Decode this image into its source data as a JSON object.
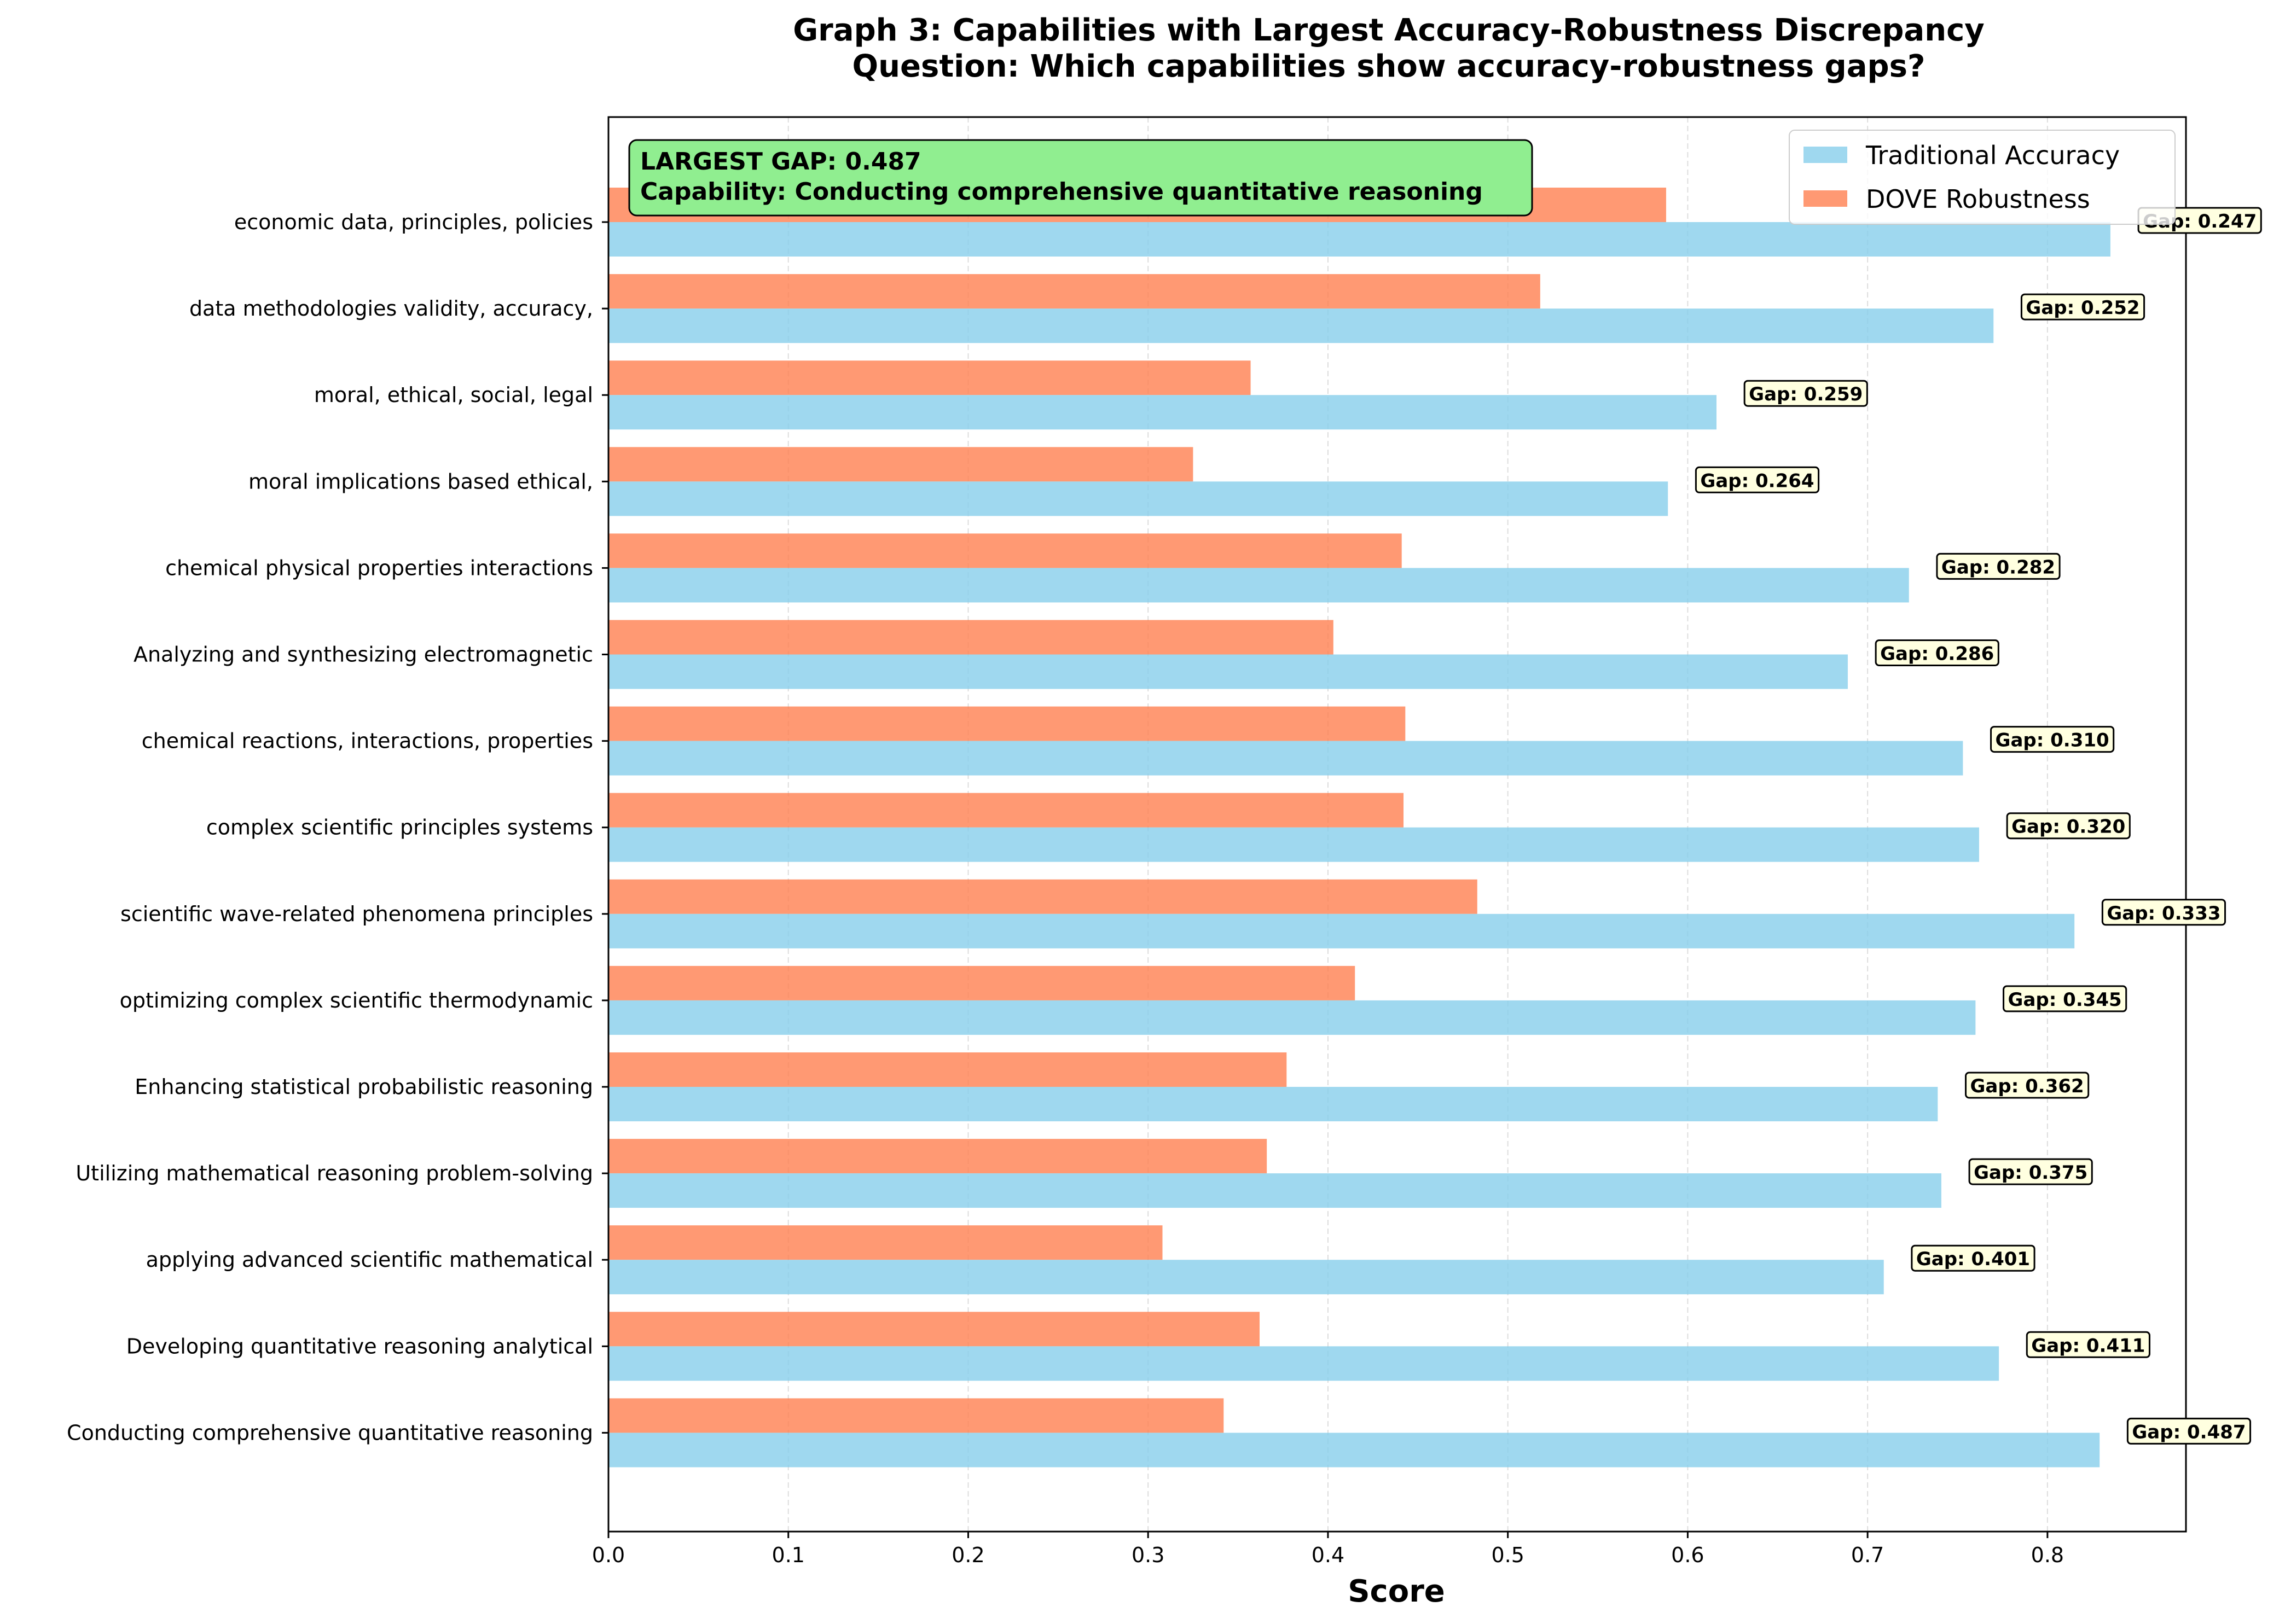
{
  "chart_data": {
    "type": "bar",
    "orientation": "horizontal",
    "title": "Graph 3: Capabilities with Largest Accuracy-Robustness Discrepancy",
    "subtitle": "Question: Which capabilities show accuracy-robustness gaps?",
    "xlabel": "Score",
    "xlim": [
      0,
      0.877
    ],
    "xticks": [
      0.0,
      0.1,
      0.2,
      0.3,
      0.4,
      0.5,
      0.6,
      0.7,
      0.8
    ],
    "xtick_labels": [
      "0.0",
      "0.1",
      "0.2",
      "0.3",
      "0.4",
      "0.5",
      "0.6",
      "0.7",
      "0.8"
    ],
    "grid": "vertical dashed, light",
    "legend": "top-right",
    "categories": [
      "economic data, principles, policies",
      "data methodologies validity, accuracy,",
      "moral, ethical, social, legal",
      "moral implications based ethical,",
      "chemical physical properties interactions",
      "Analyzing and synthesizing electromagnetic",
      "chemical reactions, interactions, properties",
      "complex scientific principles systems",
      "scientific wave-related phenomena principles",
      "optimizing complex scientific thermodynamic",
      "Enhancing statistical probabilistic reasoning",
      "Utilizing mathematical reasoning problem-solving",
      "applying advanced scientific mathematical",
      "Developing quantitative reasoning analytical",
      "Conducting comprehensive quantitative reasoning"
    ],
    "series": [
      {
        "name": "Traditional Accuracy",
        "color": "#87ceeb",
        "values": [
          0.835,
          0.77,
          0.616,
          0.589,
          0.723,
          0.689,
          0.753,
          0.762,
          0.815,
          0.76,
          0.739,
          0.741,
          0.709,
          0.773,
          0.829
        ]
      },
      {
        "name": "DOVE Robustness",
        "color": "#ff7f50",
        "values": [
          0.588,
          0.518,
          0.357,
          0.325,
          0.441,
          0.403,
          0.443,
          0.442,
          0.483,
          0.415,
          0.377,
          0.366,
          0.308,
          0.362,
          0.342
        ]
      }
    ],
    "gap_labels": [
      "Gap: 0.247",
      "Gap: 0.252",
      "Gap: 0.259",
      "Gap: 0.264",
      "Gap: 0.282",
      "Gap: 0.286",
      "Gap: 0.310",
      "Gap: 0.320",
      "Gap: 0.333",
      "Gap: 0.345",
      "Gap: 0.362",
      "Gap: 0.375",
      "Gap: 0.401",
      "Gap: 0.411",
      "Gap: 0.487"
    ],
    "annotation": {
      "line1": "LARGEST GAP: 0.487",
      "line2": "Capability: Conducting comprehensive quantitative reasoning",
      "color": "#90ee90"
    }
  }
}
